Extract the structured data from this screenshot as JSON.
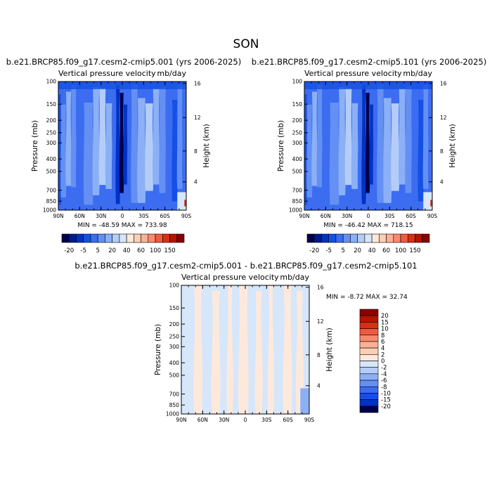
{
  "figure": {
    "title": "SON"
  },
  "chart_data": [
    {
      "type": "heatmap",
      "title": "b.e21.BRCP85.f09_g17.cesm2-cmip5.001 (yrs 2006-2025)",
      "subtitle": "Vertical pressure velocity",
      "units": "mb/day",
      "xlabel": "",
      "ylabel": "Pressure (mb)",
      "y2label": "Height (km)",
      "x_ticks": [
        "90N",
        "60N",
        "30N",
        "0",
        "30S",
        "60S",
        "90S"
      ],
      "y_ticks": [
        "100",
        "150",
        "200",
        "250",
        "300",
        "400",
        "500",
        "700",
        "850",
        "1000"
      ],
      "y2_ticks": [
        "16",
        "12",
        "8",
        "4"
      ],
      "min_max_text": "MIN = -48.59   MAX = 733.98",
      "colorbar": {
        "labels": [
          "-20",
          "-5",
          "5",
          "20",
          "40",
          "60",
          "100",
          "150"
        ],
        "colors": [
          "#00004c",
          "#001a8c",
          "#0032c4",
          "#1450e6",
          "#3c6cf0",
          "#6490f4",
          "#8cb0f6",
          "#b4cdf8",
          "#d6e6fb",
          "#fde9dc",
          "#fccfb5",
          "#fbb094",
          "#f88a6e",
          "#f05a40",
          "#dc2d14",
          "#b41400",
          "#8c0000"
        ]
      }
    },
    {
      "type": "heatmap",
      "title": "b.e21.BRCP85.f09_g17.cesm2-cmip5.101 (yrs 2006-2025)",
      "subtitle": "Vertical pressure velocity",
      "units": "mb/day",
      "xlabel": "",
      "ylabel": "Pressure (mb)",
      "y2label": "Height (km)",
      "x_ticks": [
        "90N",
        "60N",
        "30N",
        "0",
        "30S",
        "60S",
        "90S"
      ],
      "y_ticks": [
        "100",
        "150",
        "200",
        "250",
        "300",
        "400",
        "500",
        "700",
        "850",
        "1000"
      ],
      "y2_ticks": [
        "16",
        "12",
        "8",
        "4"
      ],
      "min_max_text": "MIN = -46.42   MAX = 718.15",
      "colorbar": {
        "labels": [
          "-20",
          "-5",
          "5",
          "20",
          "40",
          "60",
          "100",
          "150"
        ],
        "colors": [
          "#00004c",
          "#001a8c",
          "#0032c4",
          "#1450e6",
          "#3c6cf0",
          "#6490f4",
          "#8cb0f6",
          "#b4cdf8",
          "#d6e6fb",
          "#fde9dc",
          "#fccfb5",
          "#fbb094",
          "#f88a6e",
          "#f05a40",
          "#dc2d14",
          "#b41400",
          "#8c0000"
        ]
      }
    },
    {
      "type": "heatmap",
      "title": "b.e21.BRCP85.f09_g17.cesm2-cmip5.001 - b.e21.BRCP85.f09_g17.cesm2-cmip5.101",
      "subtitle": "Vertical pressure velocity",
      "units": "mb/day",
      "xlabel": "",
      "ylabel": "Pressure (mb)",
      "y2label": "Height (km)",
      "x_ticks": [
        "90N",
        "60N",
        "30N",
        "0",
        "30S",
        "60S",
        "90S"
      ],
      "y_ticks": [
        "100",
        "150",
        "200",
        "250",
        "300",
        "400",
        "500",
        "700",
        "850",
        "1000"
      ],
      "y2_ticks": [
        "16",
        "12",
        "8",
        "4"
      ],
      "min_max_text": "MIN =   -8.72   MAX =   32.74",
      "colorbar": {
        "labels": [
          "20",
          "15",
          "10",
          "8",
          "6",
          "4",
          "2",
          "0",
          "-2",
          "-4",
          "-6",
          "-8",
          "-10",
          "-15",
          "-20"
        ],
        "colors": [
          "#8c0000",
          "#b41400",
          "#dc2d14",
          "#f05a40",
          "#f88a6e",
          "#fbb094",
          "#fccfb5",
          "#fde9dc",
          "#d6e6fb",
          "#b4cdf8",
          "#8cb0f6",
          "#6490f4",
          "#3c6cf0",
          "#1450e6",
          "#0032c4",
          "#00004c"
        ]
      }
    }
  ]
}
